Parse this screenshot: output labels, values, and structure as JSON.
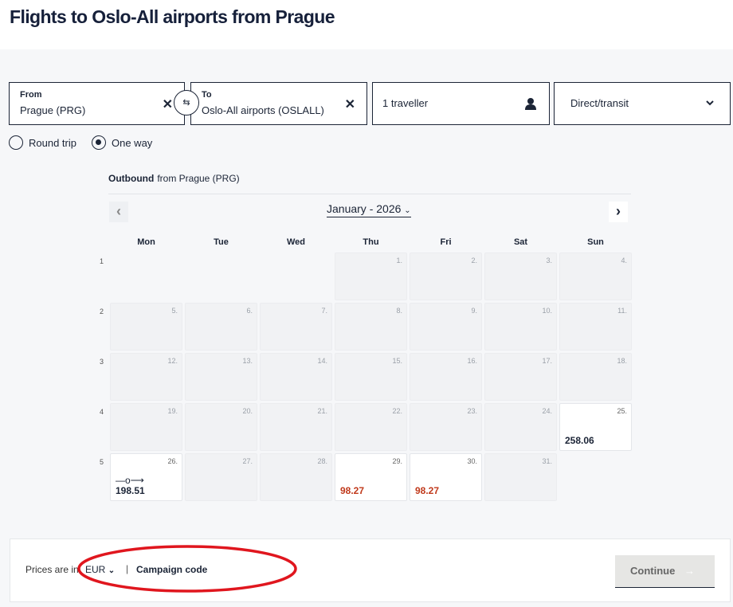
{
  "title": "Flights to Oslo-All airports from Prague",
  "search": {
    "from_label": "From",
    "from_value": "Prague (PRG)",
    "to_label": "To",
    "to_value": "Oslo-All airports (OSLALL)",
    "travellers": "1 traveller",
    "route_type": "Direct/transit",
    "trip_types": [
      "Round trip",
      "One way"
    ],
    "selected_trip_type": "One way"
  },
  "calendar": {
    "outbound_label": "Outbound",
    "outbound_from": "from Prague (PRG)",
    "month": "January - 2026",
    "weekdays": [
      "Mon",
      "Tue",
      "Wed",
      "Thu",
      "Fri",
      "Sat",
      "Sun"
    ],
    "weeks": [
      {
        "num": "1",
        "days": [
          null,
          null,
          null,
          {
            "d": "1."
          },
          {
            "d": "2."
          },
          {
            "d": "3."
          },
          {
            "d": "4."
          }
        ]
      },
      {
        "num": "2",
        "days": [
          {
            "d": "5."
          },
          {
            "d": "6."
          },
          {
            "d": "7."
          },
          {
            "d": "8."
          },
          {
            "d": "9."
          },
          {
            "d": "10."
          },
          {
            "d": "11."
          }
        ]
      },
      {
        "num": "3",
        "days": [
          {
            "d": "12."
          },
          {
            "d": "13."
          },
          {
            "d": "14."
          },
          {
            "d": "15."
          },
          {
            "d": "16."
          },
          {
            "d": "17."
          },
          {
            "d": "18."
          }
        ]
      },
      {
        "num": "4",
        "days": [
          {
            "d": "19."
          },
          {
            "d": "20."
          },
          {
            "d": "21."
          },
          {
            "d": "22."
          },
          {
            "d": "23."
          },
          {
            "d": "24."
          },
          {
            "d": "25.",
            "price": "258.06",
            "color": "#1b2436"
          }
        ]
      },
      {
        "num": "5",
        "days": [
          {
            "d": "26.",
            "price": "198.51",
            "color": "#1b2436",
            "transit": true
          },
          {
            "d": "27."
          },
          {
            "d": "28."
          },
          {
            "d": "29.",
            "price": "98.27",
            "color": "#c0391b"
          },
          {
            "d": "30.",
            "price": "98.27",
            "color": "#c0391b"
          },
          {
            "d": "31."
          },
          null
        ]
      }
    ]
  },
  "footer": {
    "prices_in": "Prices are in",
    "currency": "EUR",
    "separator": "|",
    "campaign": "Campaign code",
    "continue": "Continue"
  },
  "annotation_color": "#e0161e"
}
